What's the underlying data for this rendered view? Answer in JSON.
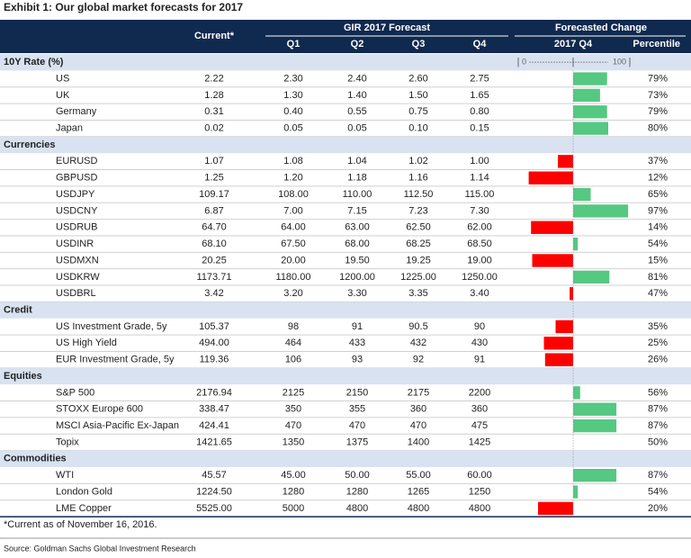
{
  "title": "Exhibit 1: Our global market forecasts for 2017",
  "header": {
    "current": "Current*",
    "forecast": "GIR 2017 Forecast",
    "quarters": [
      "Q1",
      "Q2",
      "Q3",
      "Q4"
    ],
    "change": "Forecasted Change",
    "change_q": "2017 Q4",
    "percentile": "Percentile"
  },
  "scale_ticks": [
    0,
    100
  ],
  "sections": [
    {
      "name": "10Y Rate (%)",
      "rows": [
        {
          "cells": [
            "US",
            "2.22",
            "2.30",
            "2.40",
            "2.60",
            "2.75"
          ],
          "percentile": 79,
          "percentile_label": "79%"
        },
        {
          "cells": [
            "UK",
            "1.28",
            "1.30",
            "1.40",
            "1.50",
            "1.65"
          ],
          "percentile": 73,
          "percentile_label": "73%"
        },
        {
          "cells": [
            "Germany",
            "0.31",
            "0.40",
            "0.55",
            "0.75",
            "0.80"
          ],
          "percentile": 79,
          "percentile_label": "79%"
        },
        {
          "cells": [
            "Japan",
            "0.02",
            "0.05",
            "0.05",
            "0.10",
            "0.15"
          ],
          "percentile": 80,
          "percentile_label": "80%"
        }
      ]
    },
    {
      "name": "Currencies",
      "rows": [
        {
          "cells": [
            "EURUSD",
            "1.07",
            "1.08",
            "1.04",
            "1.02",
            "1.00"
          ],
          "percentile": 37,
          "percentile_label": "37%"
        },
        {
          "cells": [
            "GBPUSD",
            "1.25",
            "1.20",
            "1.18",
            "1.16",
            "1.14"
          ],
          "percentile": 12,
          "percentile_label": "12%"
        },
        {
          "cells": [
            "USDJPY",
            "109.17",
            "108.00",
            "110.00",
            "112.50",
            "115.00"
          ],
          "percentile": 65,
          "percentile_label": "65%"
        },
        {
          "cells": [
            "USDCNY",
            "6.87",
            "7.00",
            "7.15",
            "7.23",
            "7.30"
          ],
          "percentile": 97,
          "percentile_label": "97%"
        },
        {
          "cells": [
            "USDRUB",
            "64.70",
            "64.00",
            "63.00",
            "62.50",
            "62.00"
          ],
          "percentile": 14,
          "percentile_label": "14%"
        },
        {
          "cells": [
            "USDINR",
            "68.10",
            "67.50",
            "68.00",
            "68.25",
            "68.50"
          ],
          "percentile": 54,
          "percentile_label": "54%"
        },
        {
          "cells": [
            "USDMXN",
            "20.25",
            "20.00",
            "19.50",
            "19.25",
            "19.00"
          ],
          "percentile": 15,
          "percentile_label": "15%"
        },
        {
          "cells": [
            "USDKRW",
            "1173.71",
            "1180.00",
            "1200.00",
            "1225.00",
            "1250.00"
          ],
          "percentile": 81,
          "percentile_label": "81%"
        },
        {
          "cells": [
            "USDBRL",
            "3.42",
            "3.20",
            "3.30",
            "3.35",
            "3.40"
          ],
          "percentile": 47,
          "percentile_label": "47%"
        }
      ]
    },
    {
      "name": "Credit",
      "rows": [
        {
          "cells": [
            "US Investment Grade, 5y",
            "105.37",
            "98",
            "91",
            "90.5",
            "90"
          ],
          "percentile": 35,
          "percentile_label": "35%"
        },
        {
          "cells": [
            "US High Yield",
            "494.00",
            "464",
            "433",
            "432",
            "430"
          ],
          "percentile": 25,
          "percentile_label": "25%"
        },
        {
          "cells": [
            "EUR Investment Grade, 5y",
            "119.36",
            "106",
            "93",
            "92",
            "91"
          ],
          "percentile": 26,
          "percentile_label": "26%"
        }
      ]
    },
    {
      "name": "Equities",
      "rows": [
        {
          "cells": [
            "S&P 500",
            "2176.94",
            "2125",
            "2150",
            "2175",
            "2200"
          ],
          "percentile": 56,
          "percentile_label": "56%"
        },
        {
          "cells": [
            "STOXX Europe 600",
            "338.47",
            "350",
            "355",
            "360",
            "360"
          ],
          "percentile": 87,
          "percentile_label": "87%"
        },
        {
          "cells": [
            "MSCI Asia-Pacific Ex-Japan",
            "424.41",
            "470",
            "470",
            "470",
            "475"
          ],
          "percentile": 87,
          "percentile_label": "87%"
        },
        {
          "cells": [
            "Topix",
            "1421.65",
            "1350",
            "1375",
            "1400",
            "1425"
          ],
          "percentile": 50,
          "percentile_label": "50%"
        }
      ]
    },
    {
      "name": "Commodities",
      "rows": [
        {
          "cells": [
            "WTI",
            "45.57",
            "45.00",
            "50.00",
            "55.00",
            "60.00"
          ],
          "percentile": 87,
          "percentile_label": "87%"
        },
        {
          "cells": [
            "London Gold",
            "1224.50",
            "1280",
            "1280",
            "1265",
            "1250"
          ],
          "percentile": 54,
          "percentile_label": "54%"
        },
        {
          "cells": [
            "LME Copper",
            "5525.00",
            "5000",
            "4800",
            "4800",
            "4800"
          ],
          "percentile": 20,
          "percentile_label": "20%"
        }
      ]
    }
  ],
  "footnote": "*Current as of November 16, 2016.",
  "source": "Source: Goldman Sachs Global Investment Research"
}
